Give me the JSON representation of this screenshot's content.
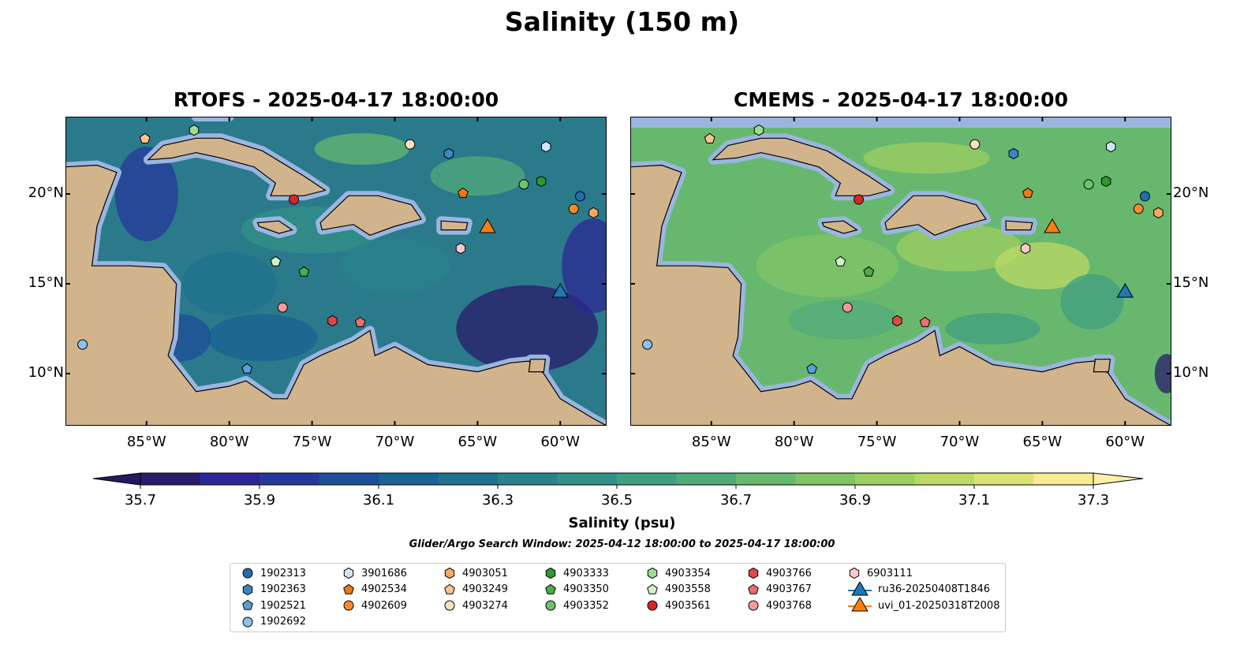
{
  "figure": {
    "title": "Salinity (150 m)",
    "colorbar_label": "Salinity (psu)",
    "search_window": "Glider/Argo Search Window: 2025-04-12 18:00:00 to 2025-04-17 18:00:00"
  },
  "panels": [
    {
      "title": "RTOFS - 2025-04-17 18:00:00",
      "lat_labels_side": "left"
    },
    {
      "title": "CMEMS - 2025-04-17 18:00:00",
      "lat_labels_side": "right"
    }
  ],
  "map_extent": {
    "lon": [
      -89.9,
      -57.2
    ],
    "lat": [
      7.1,
      24.3
    ]
  },
  "lon_ticks": [
    {
      "v": -85,
      "label": "85°W"
    },
    {
      "v": -80,
      "label": "80°W"
    },
    {
      "v": -75,
      "label": "75°W"
    },
    {
      "v": -70,
      "label": "70°W"
    },
    {
      "v": -65,
      "label": "65°W"
    },
    {
      "v": -60,
      "label": "60°W"
    }
  ],
  "lat_ticks": [
    {
      "v": 20,
      "label": "20°N"
    },
    {
      "v": 15,
      "label": "15°N"
    },
    {
      "v": 10,
      "label": "10°N"
    }
  ],
  "colorbar": {
    "min": 35.7,
    "max": 37.3,
    "step": 0.1,
    "extend": "both",
    "tick_labels": [
      "35.7",
      "35.9",
      "36.1",
      "36.3",
      "36.5",
      "36.7",
      "36.9",
      "37.1",
      "37.3"
    ],
    "colors": [
      "#2a1b6a",
      "#2c2794",
      "#25389a",
      "#1d4e98",
      "#1a6392",
      "#20728e",
      "#2a828b",
      "#339087",
      "#409e81",
      "#51ab79",
      "#66b86f",
      "#80c466",
      "#9ecf62",
      "#bcd966",
      "#dbe377",
      "#f7ec94"
    ],
    "under_color": "#26195e",
    "over_color": "#fdf0a6"
  },
  "colors": {
    "land": "#d2b48c",
    "shelf": "#9ab6e0",
    "ocean_rtofs": "#2a7a8c",
    "ocean_cmems": "#67b86e"
  },
  "legend": [
    {
      "label": "1902313",
      "marker": "circle",
      "color": "#1f6fb0",
      "lon": -58.8,
      "lat": 19.87
    },
    {
      "label": "1902363",
      "marker": "hexagon",
      "color": "#3a86c4",
      "lon": -66.74,
      "lat": 22.24
    },
    {
      "label": "1902521",
      "marker": "pentagon",
      "color": "#5a9fd8",
      "lon": -78.93,
      "lat": 10.26
    },
    {
      "label": "1902692",
      "marker": "circle",
      "color": "#8cc2ec",
      "lon": -88.87,
      "lat": 11.62
    },
    {
      "label": "3901686",
      "marker": "hexagon",
      "color": "#cde6f8",
      "lon": -60.86,
      "lat": 22.63
    },
    {
      "label": "4902534",
      "marker": "pentagon",
      "color": "#f07818",
      "lon": -65.88,
      "lat": 20.04
    },
    {
      "label": "4902609",
      "marker": "circle",
      "color": "#f78c2a",
      "lon": -59.19,
      "lat": 19.17
    },
    {
      "label": "4903051",
      "marker": "hexagon",
      "color": "#f9a860",
      "lon": -57.99,
      "lat": 18.95
    },
    {
      "label": "4903249",
      "marker": "pentagon",
      "color": "#fcc48e",
      "lon": -85.1,
      "lat": 23.07
    },
    {
      "label": "4903274",
      "marker": "circle",
      "color": "#fde0c0",
      "lon": -69.08,
      "lat": 22.76
    },
    {
      "label": "4903333",
      "marker": "hexagon",
      "color": "#2a9a2a",
      "lon": -61.15,
      "lat": 20.7
    },
    {
      "label": "4903350",
      "marker": "pentagon",
      "color": "#45b045",
      "lon": -75.49,
      "lat": 15.66
    },
    {
      "label": "4903352",
      "marker": "circle",
      "color": "#6cc46c",
      "lon": -62.2,
      "lat": 20.53
    },
    {
      "label": "4903354",
      "marker": "hexagon",
      "color": "#9cdc90",
      "lon": -82.13,
      "lat": 23.55
    },
    {
      "label": "4903558",
      "marker": "pentagon",
      "color": "#d2f2c8",
      "lon": -77.2,
      "lat": 16.23
    },
    {
      "label": "4903561",
      "marker": "circle",
      "color": "#d62728",
      "lon": -76.1,
      "lat": 19.69
    },
    {
      "label": "4903766",
      "marker": "hexagon",
      "color": "#e04848",
      "lon": -73.77,
      "lat": 12.94
    },
    {
      "label": "4903767",
      "marker": "pentagon",
      "color": "#ec6e6e",
      "lon": -72.09,
      "lat": 12.85
    },
    {
      "label": "4903768",
      "marker": "circle",
      "color": "#f49a9a",
      "lon": -76.78,
      "lat": 13.68
    },
    {
      "label": "6903111",
      "marker": "hexagon",
      "color": "#fbc8cc",
      "lon": -66.02,
      "lat": 16.97
    },
    {
      "label": "ru36-20250408T1846",
      "marker": "triangle",
      "color": "#1f77b4",
      "lon": -60.0,
      "lat": 14.6
    },
    {
      "label": "uvi_01-20250318T2008",
      "marker": "triangle",
      "color": "#ff7f0e",
      "lon": -64.4,
      "lat": 18.2
    }
  ]
}
